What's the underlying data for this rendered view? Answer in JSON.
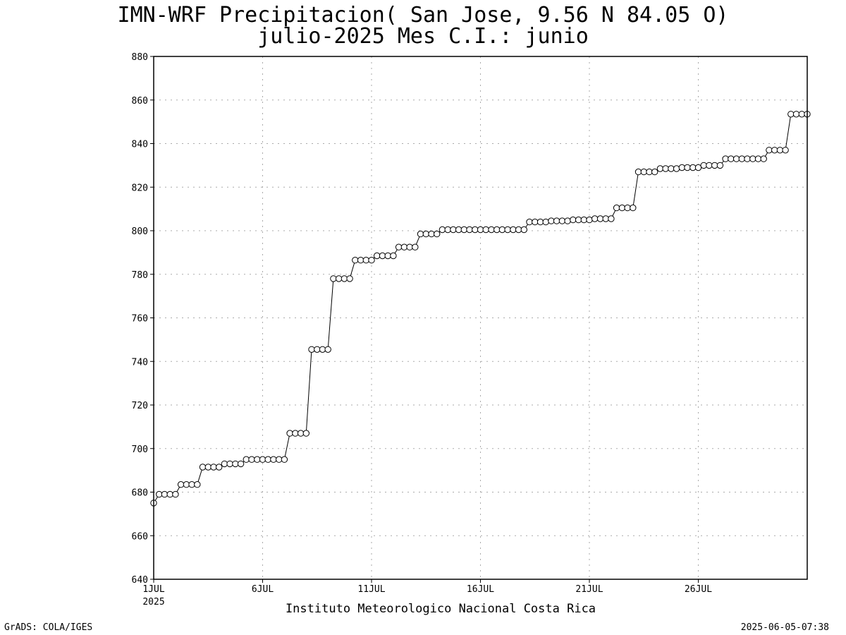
{
  "title_line1": "IMN-WRF  Precipitacion( San Jose, 9.56  N 84.05  O)",
  "title_line2": "julio-2025 Mes C.I.: junio",
  "footer_left": "GrADS: COLA/IGES",
  "footer_right": "2025-06-05-07:38",
  "institution": "Instituto Meteorologico Nacional Costa Rica",
  "chart_data": {
    "type": "line",
    "title": "IMN-WRF  Precipitacion( San Jose, 9.56  N 84.05  O)",
    "subtitle": "julio-2025 Mes C.I.: junio",
    "xlabel": "",
    "ylabel": "",
    "ylim": [
      640,
      880
    ],
    "yticks": [
      640,
      660,
      680,
      700,
      720,
      740,
      760,
      780,
      800,
      820,
      840,
      860,
      880
    ],
    "xlim_days": [
      1,
      31
    ],
    "xticks": [
      {
        "day": 1,
        "label": "1JUL",
        "sublabel": "2025"
      },
      {
        "day": 6,
        "label": "6JUL",
        "sublabel": ""
      },
      {
        "day": 11,
        "label": "11JUL",
        "sublabel": ""
      },
      {
        "day": 16,
        "label": "16JUL",
        "sublabel": ""
      },
      {
        "day": 21,
        "label": "21JUL",
        "sublabel": ""
      },
      {
        "day": 26,
        "label": "26JUL",
        "sublabel": ""
      }
    ],
    "grid": true,
    "marker": "open-circle",
    "series": [
      {
        "name": "",
        "step_hours": 6,
        "start": "2025-07-01T00",
        "values": [
          675,
          679,
          679,
          679,
          679,
          683.5,
          683.5,
          683.5,
          683.5,
          691.5,
          691.5,
          691.5,
          691.5,
          693,
          693,
          693,
          693,
          695,
          695,
          695,
          695,
          695,
          695,
          695,
          695,
          707,
          707,
          707,
          707,
          745.5,
          745.5,
          745.5,
          745.5,
          778,
          778,
          778,
          778,
          786.5,
          786.5,
          786.5,
          786.5,
          788.5,
          788.5,
          788.5,
          788.5,
          792.5,
          792.5,
          792.5,
          792.5,
          798.5,
          798.5,
          798.5,
          798.5,
          800.5,
          800.5,
          800.5,
          800.5,
          800.5,
          800.5,
          800.5,
          800.5,
          800.5,
          800.5,
          800.5,
          800.5,
          800.5,
          800.5,
          800.5,
          800.5,
          804,
          804,
          804,
          804,
          804.5,
          804.5,
          804.5,
          804.5,
          805,
          805,
          805,
          805,
          805.5,
          805.5,
          805.5,
          805.5,
          810.5,
          810.5,
          810.5,
          810.5,
          827,
          827,
          827,
          827,
          828.5,
          828.5,
          828.5,
          828.5,
          829,
          829,
          829,
          829,
          830,
          830,
          830,
          830,
          833,
          833,
          833,
          833,
          833,
          833,
          833,
          833,
          837,
          837,
          837,
          837,
          853.5,
          853.5,
          853.5,
          853.5
        ]
      }
    ]
  }
}
